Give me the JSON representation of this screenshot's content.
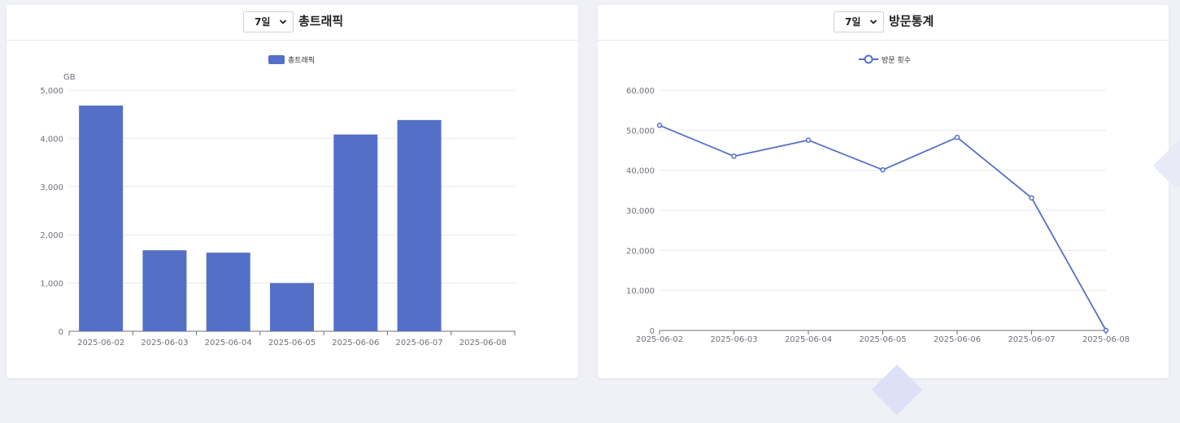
{
  "colors": {
    "accent": "#5470c6",
    "background": "#f0f1f6"
  },
  "traffic_panel": {
    "period_value": "7일",
    "title": "총트래픽",
    "unit": "GB"
  },
  "visits_panel": {
    "period_value": "7일",
    "title": "방문통계"
  },
  "chart_data": [
    {
      "type": "bar",
      "categories": [
        "2025-06-02",
        "2025-06-03",
        "2025-06-04",
        "2025-06-05",
        "2025-06-06",
        "2025-06-07",
        "2025-06-08"
      ],
      "series": [
        {
          "name": "총트래픽",
          "values": [
            4680,
            1680,
            1630,
            1000,
            4080,
            4380,
            0
          ]
        }
      ],
      "ylabel": "GB",
      "ylim": [
        0,
        5000
      ],
      "yticks": [
        "0",
        "1,000",
        "2,000",
        "3,000",
        "4,000",
        "5,000"
      ],
      "legend": "top-center",
      "grid": true
    },
    {
      "type": "line",
      "categories": [
        "2025-06-02",
        "2025-06-03",
        "2025-06-04",
        "2025-06-05",
        "2025-06-06",
        "2025-06-07",
        "2025-06-08"
      ],
      "series": [
        {
          "name": "방문 횟수",
          "values": [
            51200,
            43500,
            47500,
            40100,
            48200,
            33100,
            0
          ]
        }
      ],
      "ylim": [
        0,
        60000
      ],
      "yticks": [
        "0",
        "10,000",
        "20,000",
        "30,000",
        "40,000",
        "50,000",
        "60,000"
      ],
      "legend": "top-center",
      "grid": true
    }
  ]
}
